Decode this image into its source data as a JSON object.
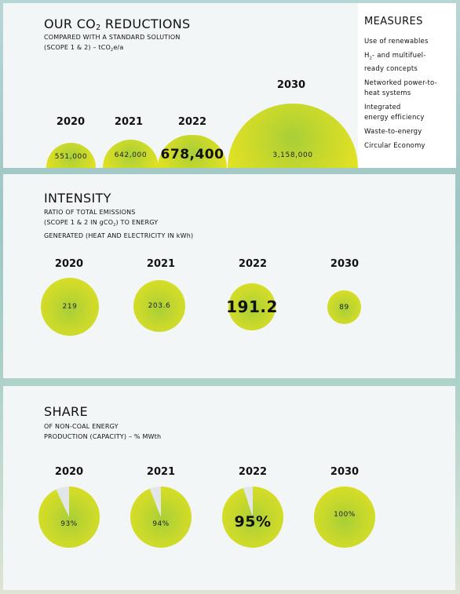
{
  "co2": {
    "title_main": "OUR CO",
    "title_sub": "2",
    "title_rest": " REDUCTIONS",
    "subtitle_line1": "COMPARED WITH A STANDARD SOLUTION",
    "subtitle_line2a": "(SCOPE 1 & 2) – tCO",
    "subtitle_line2b": "2",
    "subtitle_line2c": "e/a",
    "items": [
      {
        "year": "2020",
        "value": "551,000"
      },
      {
        "year": "2021",
        "value": "642,000"
      },
      {
        "year": "2022",
        "value": "678,400"
      },
      {
        "year": "2030",
        "value": "3,158,000"
      }
    ]
  },
  "measures": {
    "title": "MEASURES",
    "items": [
      "Use of renewables",
      "H",
      "- and multifuel-",
      "ready concepts",
      "Networked power-to-",
      "heat systems",
      "Integrated",
      "energy efficiency",
      "Waste-to-energy",
      "Circular Economy"
    ],
    "h2_sub": "2"
  },
  "intensity": {
    "title": "INTENSITY",
    "line1": "RATIO OF TOTAL EMISSIONS",
    "line2a": "(SCOPE 1 & 2 IN gCO",
    "line2b": "2",
    "line2c": ") TO ENERGY",
    "line3": "GENERATED (HEAT AND ELECTRICITY IN kWh)",
    "items": [
      {
        "year": "2020",
        "value": "219"
      },
      {
        "year": "2021",
        "value": "203.6"
      },
      {
        "year": "2022",
        "value": "191.2"
      },
      {
        "year": "2030",
        "value": "89"
      }
    ]
  },
  "share": {
    "title": "SHARE",
    "line1": "OF NON-COAL ENERGY",
    "line2": "PRODUCTION (CAPACITY) – % MWth",
    "items": [
      {
        "year": "2020",
        "value": "93%",
        "fraction": 0.93
      },
      {
        "year": "2021",
        "value": "94%",
        "fraction": 0.94
      },
      {
        "year": "2022",
        "value": "95%",
        "fraction": 0.95
      },
      {
        "year": "2030",
        "value": "100%",
        "fraction": 1.0
      }
    ]
  },
  "colors": {
    "bubble_center": "#a8cf38",
    "bubble_edge": "#e6e322",
    "pie_empty": "#e2e6e6"
  }
}
